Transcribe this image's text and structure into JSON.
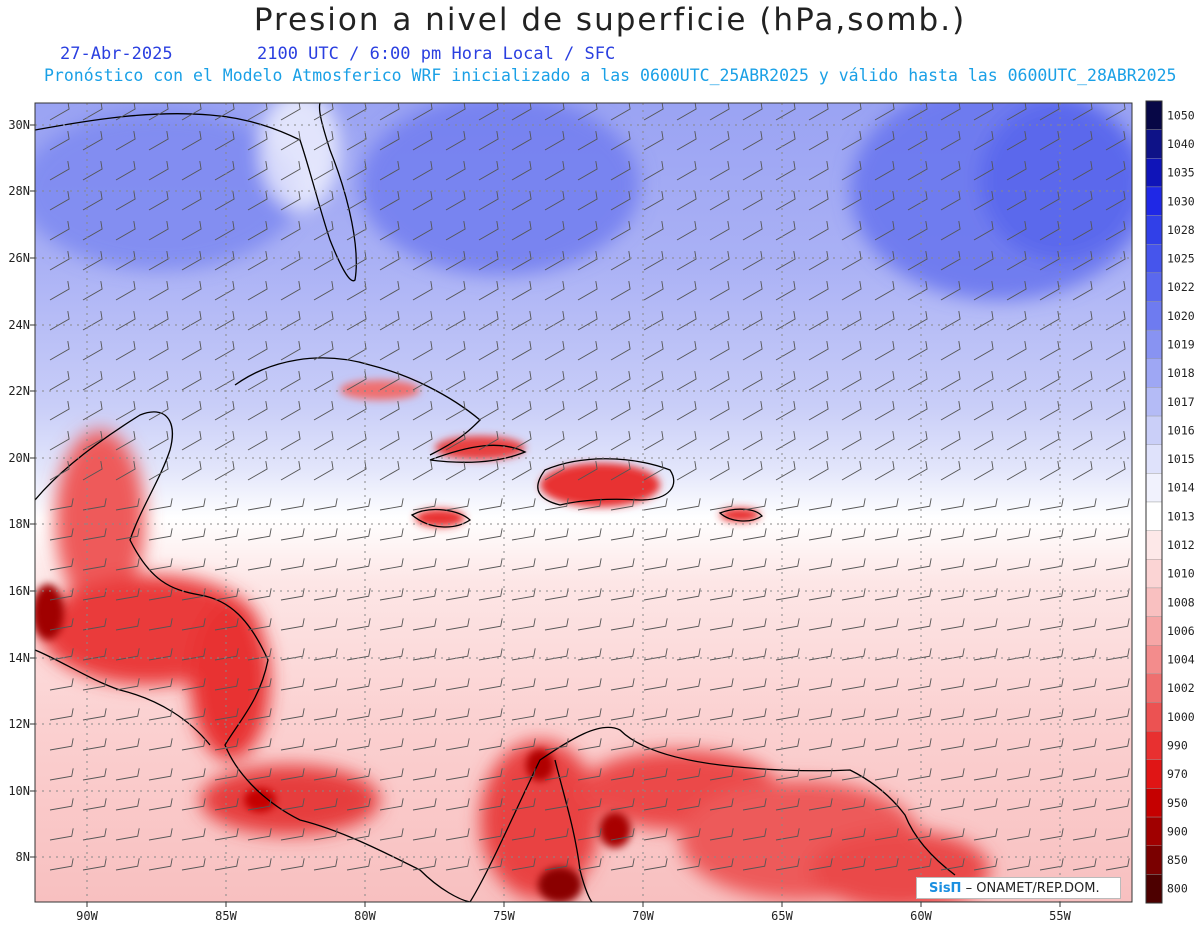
{
  "header": {
    "title": "Presion a nivel de superficie (hPa,somb.)",
    "date": "27-Abr-2025",
    "valid_time": "2100 UTC / 6:00 pm Hora Local / SFC",
    "forecast_info": "Pronóstico con el Modelo Atmosferico WRF inicializado a las 0600UTC_25ABR2025 y válido hasta las  0600UTC_28ABR2025"
  },
  "axes": {
    "lat_labels": [
      "30N",
      "28N",
      "26N",
      "24N",
      "22N",
      "20N",
      "18N",
      "16N",
      "14N",
      "12N",
      "10N",
      "8N"
    ],
    "lon_labels": [
      "90W",
      "85W",
      "80W",
      "75W",
      "70W",
      "65W",
      "60W",
      "55W"
    ]
  },
  "colorbar": {
    "levels": [
      "1050",
      "1040",
      "1035",
      "1030",
      "1028",
      "1025",
      "1022",
      "1020",
      "1019",
      "1018",
      "1017",
      "1016",
      "1015",
      "1014",
      "1013",
      "1012",
      "1010",
      "1008",
      "1006",
      "1004",
      "1002",
      "1000",
      "990",
      "970",
      "950",
      "900",
      "850",
      "800"
    ],
    "colors": [
      "#070746",
      "#0e1287",
      "#0f14b8",
      "#1f28e6",
      "#3140e8",
      "#4655ec",
      "#5a68ee",
      "#6e7bf0",
      "#8893f2",
      "#9ea7f4",
      "#b4bbf6",
      "#cacff8",
      "#dfe2fb",
      "#f1f2fd",
      "#ffffff",
      "#fde8e8",
      "#fbd4d4",
      "#f9c0c0",
      "#f6a6a6",
      "#f38c8c",
      "#ef6f6f",
      "#ec5252",
      "#e83030",
      "#e01515",
      "#c50000",
      "#a00000",
      "#7a0000",
      "#4d0000"
    ]
  },
  "credit": {
    "brand": "SisΠ",
    "text": "– ONAMET/REP.DOM."
  }
}
